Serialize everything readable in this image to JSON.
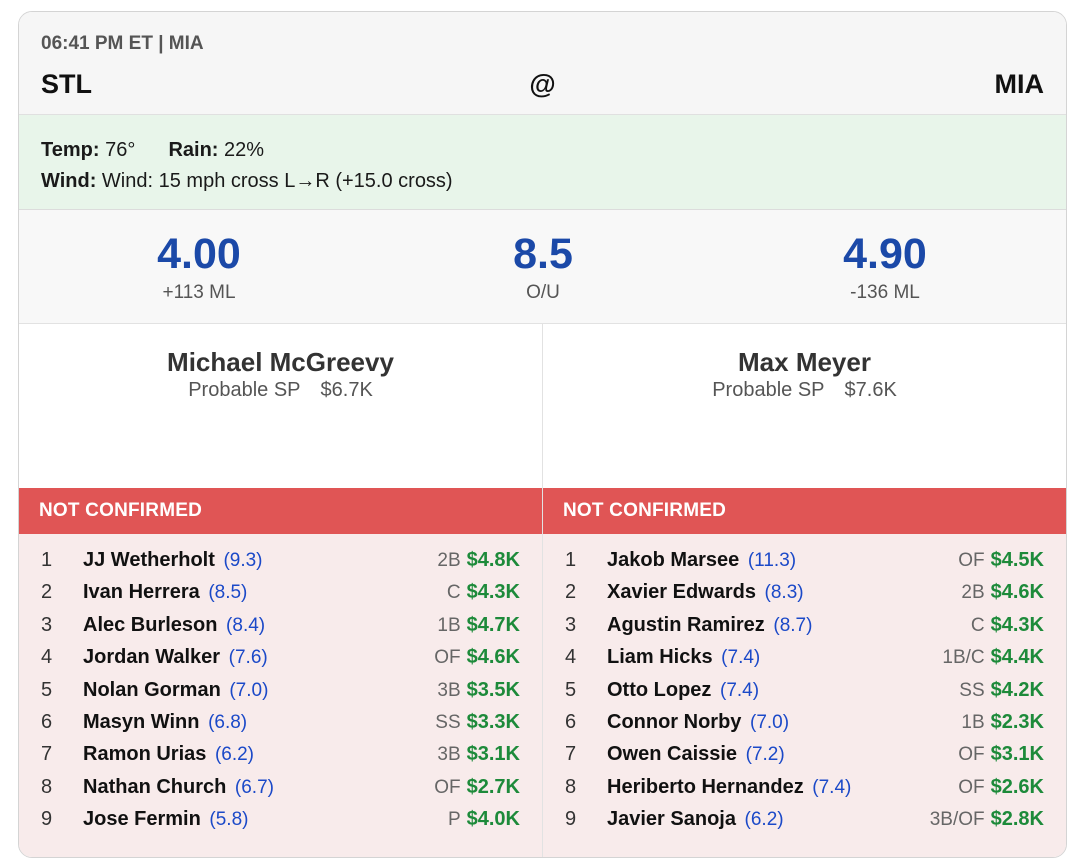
{
  "header": {
    "time": "06:41 PM ET | MIA",
    "away": "STL",
    "at": "@",
    "home": "MIA"
  },
  "weather": {
    "temp_label": "Temp:",
    "temp": "76°",
    "rain_label": "Rain:",
    "rain": "22%",
    "wind_label": "Wind:",
    "wind": "Wind: 15 mph cross L→R (+15.0 cross)"
  },
  "odds": {
    "away_total": "4.00",
    "away_ml": "+113 ML",
    "ou": "8.5",
    "ou_label": "O/U",
    "home_total": "4.90",
    "home_ml": "-136 ML"
  },
  "pitchers": {
    "away": {
      "name": "Michael McGreevy",
      "role": "Probable SP",
      "salary": "$6.7K"
    },
    "home": {
      "name": "Max Meyer",
      "role": "Probable SP",
      "salary": "$7.6K"
    }
  },
  "lineups": {
    "away": {
      "status": "NOT CONFIRMED",
      "players": [
        {
          "order": "1",
          "name": "JJ Wetherholt",
          "proj": "(9.3)",
          "pos": "2B",
          "salary": "$4.8K"
        },
        {
          "order": "2",
          "name": "Ivan Herrera",
          "proj": "(8.5)",
          "pos": "C",
          "salary": "$4.3K"
        },
        {
          "order": "3",
          "name": "Alec Burleson",
          "proj": "(8.4)",
          "pos": "1B",
          "salary": "$4.7K"
        },
        {
          "order": "4",
          "name": "Jordan Walker",
          "proj": "(7.6)",
          "pos": "OF",
          "salary": "$4.6K"
        },
        {
          "order": "5",
          "name": "Nolan Gorman",
          "proj": "(7.0)",
          "pos": "3B",
          "salary": "$3.5K"
        },
        {
          "order": "6",
          "name": "Masyn Winn",
          "proj": "(6.8)",
          "pos": "SS",
          "salary": "$3.3K"
        },
        {
          "order": "7",
          "name": "Ramon Urias",
          "proj": "(6.2)",
          "pos": "3B",
          "salary": "$3.1K"
        },
        {
          "order": "8",
          "name": "Nathan Church",
          "proj": "(6.7)",
          "pos": "OF",
          "salary": "$2.7K"
        },
        {
          "order": "9",
          "name": "Jose Fermin",
          "proj": "(5.8)",
          "pos": "P",
          "salary": "$4.0K"
        }
      ]
    },
    "home": {
      "status": "NOT CONFIRMED",
      "players": [
        {
          "order": "1",
          "name": "Jakob Marsee",
          "proj": "(11.3)",
          "pos": "OF",
          "salary": "$4.5K"
        },
        {
          "order": "2",
          "name": "Xavier Edwards",
          "proj": "(8.3)",
          "pos": "2B",
          "salary": "$4.6K"
        },
        {
          "order": "3",
          "name": "Agustin Ramirez",
          "proj": "(8.7)",
          "pos": "C",
          "salary": "$4.3K"
        },
        {
          "order": "4",
          "name": "Liam Hicks",
          "proj": "(7.4)",
          "pos": "1B/C",
          "salary": "$4.4K"
        },
        {
          "order": "5",
          "name": "Otto Lopez",
          "proj": "(7.4)",
          "pos": "SS",
          "salary": "$4.2K"
        },
        {
          "order": "6",
          "name": "Connor Norby",
          "proj": "(7.0)",
          "pos": "1B",
          "salary": "$2.3K"
        },
        {
          "order": "7",
          "name": "Owen Caissie",
          "proj": "(7.2)",
          "pos": "OF",
          "salary": "$3.1K"
        },
        {
          "order": "8",
          "name": "Heriberto Hernandez",
          "proj": "(7.4)",
          "pos": "OF",
          "salary": "$2.6K"
        },
        {
          "order": "9",
          "name": "Javier Sanoja",
          "proj": "(6.2)",
          "pos": "3B/OF",
          "salary": "$2.8K"
        }
      ]
    }
  },
  "colors": {
    "accent_blue": "#1b49a8",
    "status_red": "#e05555",
    "salary_green": "#1d8a3a",
    "weather_bg": "#e8f5ea",
    "lineup_bg": "#f8ebeb"
  }
}
